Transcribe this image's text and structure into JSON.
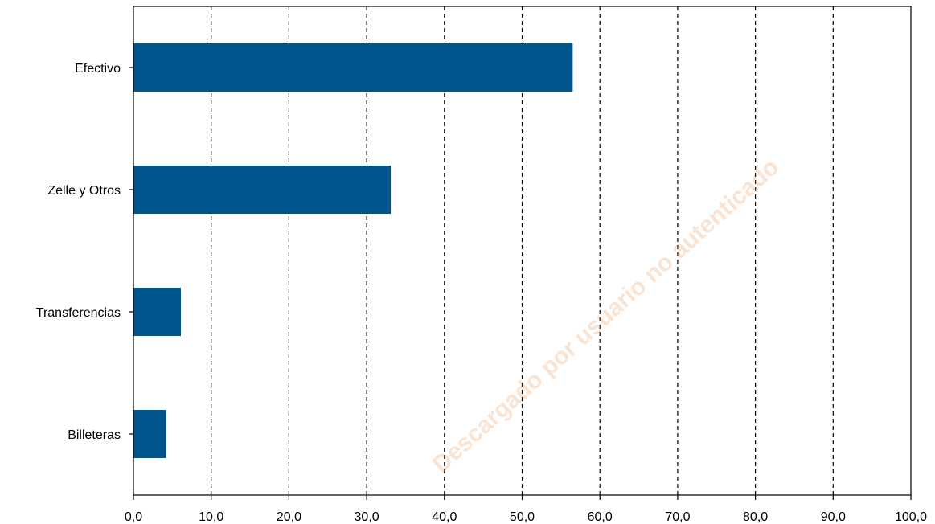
{
  "chart_data": {
    "type": "bar",
    "orientation": "horizontal",
    "categories": [
      "Efectivo",
      "Zelle y Otros",
      "Transferencias",
      "Billeteras"
    ],
    "values": [
      56.5,
      33.1,
      6.1,
      4.2
    ],
    "xlim": [
      0,
      100
    ],
    "xticks": [
      "0,0",
      "10,0",
      "20,0",
      "30,0",
      "40,0",
      "50,0",
      "60,0",
      "70,0",
      "80,0",
      "90,0",
      "100,0"
    ],
    "grid": "vertical dashed",
    "legend": "none",
    "bar_color": "#00568c"
  },
  "watermark": "Descargado por usuario no autenticado"
}
